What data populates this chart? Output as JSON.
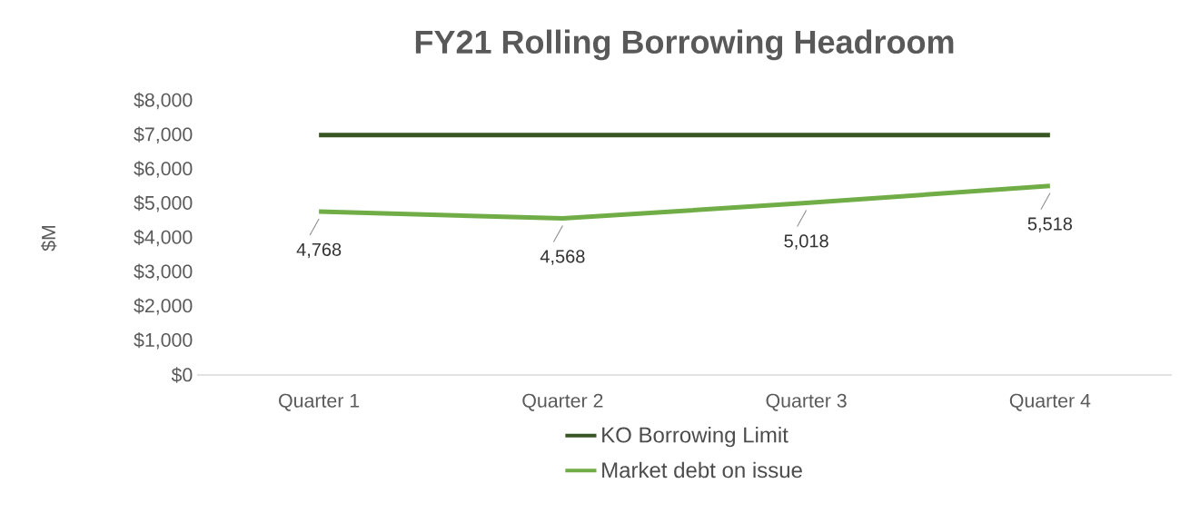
{
  "chart_data": {
    "type": "line",
    "title": "FY21 Rolling Borrowing Headroom",
    "ylabel": "$M",
    "categories": [
      "Quarter 1",
      "Quarter 2",
      "Quarter 3",
      "Quarter 4"
    ],
    "series": [
      {
        "name": "KO Borrowing Limit",
        "color": "#375623",
        "values": [
          7000,
          7000,
          7000,
          7000
        ]
      },
      {
        "name": "Market debt on issue",
        "color": "#70ad47",
        "values": [
          4768,
          4568,
          5018,
          5518
        ],
        "value_labels": [
          "4,768",
          "4,568",
          "5,018",
          "5,518"
        ]
      }
    ],
    "ylim": [
      0,
      8000
    ],
    "yticks": [
      {
        "value": 0,
        "label": "$0"
      },
      {
        "value": 1000,
        "label": "$1,000"
      },
      {
        "value": 2000,
        "label": "$2,000"
      },
      {
        "value": 3000,
        "label": "$3,000"
      },
      {
        "value": 4000,
        "label": "$4,000"
      },
      {
        "value": 5000,
        "label": "$5,000"
      },
      {
        "value": 6000,
        "label": "$6,000"
      },
      {
        "value": 7000,
        "label": "$7,000"
      },
      {
        "value": 8000,
        "label": "$8,000"
      }
    ],
    "grid": false,
    "legend": "bottom",
    "marker": "none",
    "line_style": "solid"
  }
}
